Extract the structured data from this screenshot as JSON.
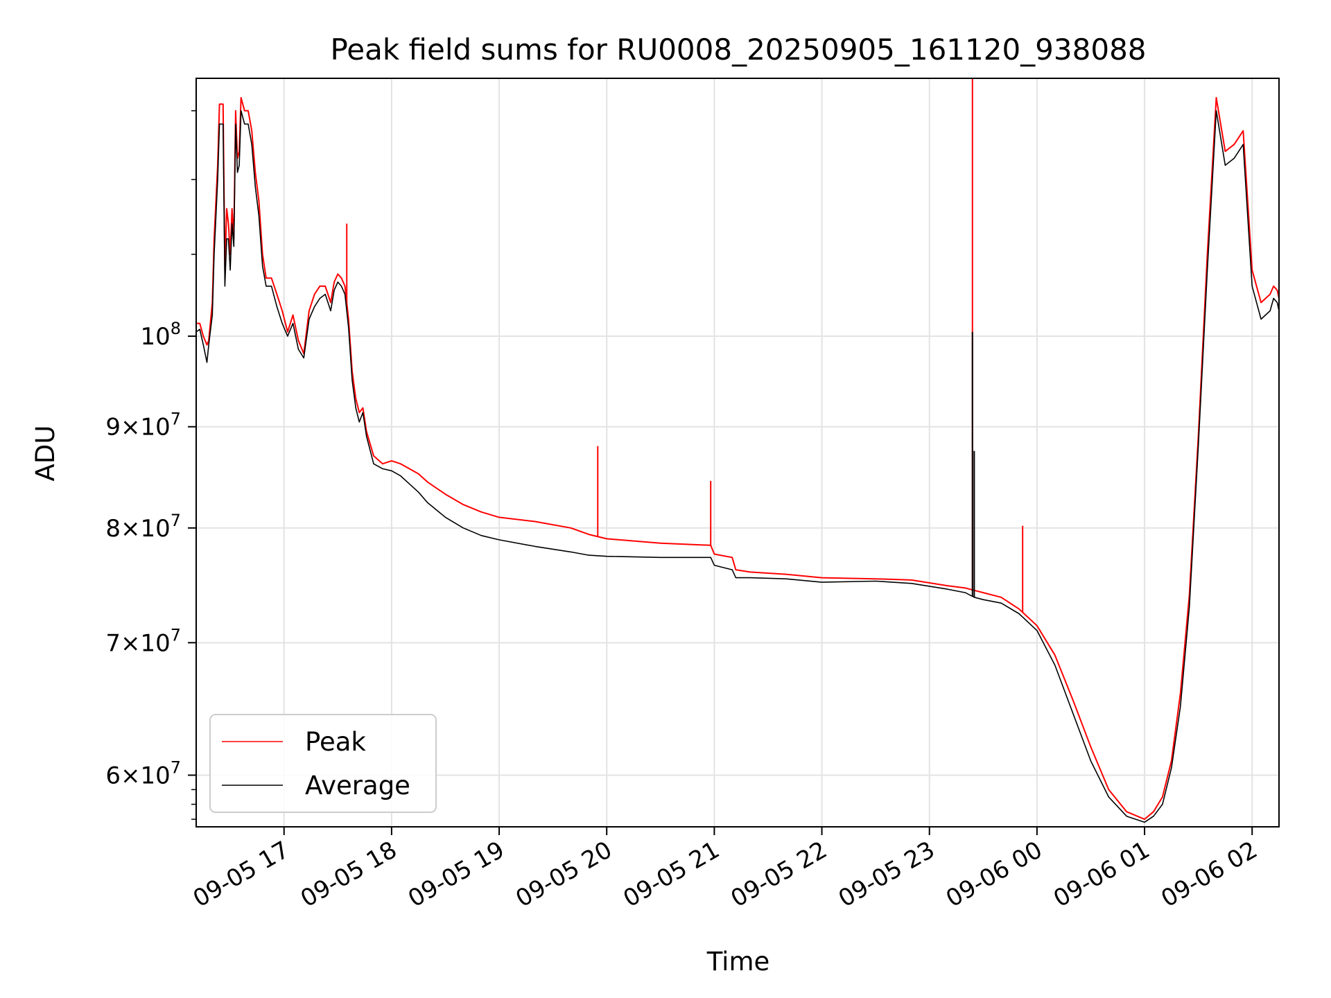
{
  "chart_data": {
    "type": "line",
    "title": "Peak field sums for RU0008_20250905_161120_938088",
    "xlabel": "Time",
    "ylabel": "ADU",
    "yscale": "log",
    "xlim": [
      "2025-09-05 16:11",
      "2025-09-06 02:15"
    ],
    "ylim": [
      56500000,
      135000000
    ],
    "grid": true,
    "legend_position": "lower left",
    "x_ticks": [
      "09-05 17",
      "09-05 18",
      "09-05 19",
      "09-05 20",
      "09-05 21",
      "09-05 22",
      "09-05 23",
      "09-06 00",
      "09-06 01",
      "09-06 02"
    ],
    "y_ticks": [
      {
        "value": 60000000,
        "mantissa": "6",
        "exponent": "7"
      },
      {
        "value": 70000000,
        "mantissa": "7",
        "exponent": "7"
      },
      {
        "value": 80000000,
        "mantissa": "8",
        "exponent": "7"
      },
      {
        "value": 90000000,
        "mantissa": "9",
        "exponent": "7"
      },
      {
        "value": 100000000,
        "mantissa": "",
        "exponent": "8"
      }
    ],
    "series": [
      {
        "name": "Peak",
        "color": "#ff0000",
        "x": [
          "2025-09-05 16:11",
          "2025-09-05 16:13",
          "2025-09-05 16:15",
          "2025-09-05 16:17",
          "2025-09-05 16:18",
          "2025-09-05 16:20",
          "2025-09-05 16:21",
          "2025-09-05 16:23",
          "2025-09-05 16:24",
          "2025-09-05 16:26",
          "2025-09-05 16:27",
          "2025-09-05 16:28",
          "2025-09-05 16:29",
          "2025-09-05 16:30",
          "2025-09-05 16:31",
          "2025-09-05 16:32",
          "2025-09-05 16:33",
          "2025-09-05 16:34",
          "2025-09-05 16:35",
          "2025-09-05 16:36",
          "2025-09-05 16:38",
          "2025-09-05 16:40",
          "2025-09-05 16:42",
          "2025-09-05 16:44",
          "2025-09-05 16:46",
          "2025-09-05 16:48",
          "2025-09-05 16:50",
          "2025-09-05 16:53",
          "2025-09-05 16:56",
          "2025-09-05 16:59",
          "2025-09-05 17:02",
          "2025-09-05 17:05",
          "2025-09-05 17:08",
          "2025-09-05 17:11",
          "2025-09-05 17:14",
          "2025-09-05 17:17",
          "2025-09-05 17:20",
          "2025-09-05 17:23",
          "2025-09-05 17:26",
          "2025-09-05 17:28",
          "2025-09-05 17:30",
          "2025-09-05 17:32",
          "2025-09-05 17:34",
          "2025-09-05 17:36",
          "2025-09-05 17:38",
          "2025-09-05 17:40",
          "2025-09-05 17:42",
          "2025-09-05 17:44",
          "2025-09-05 17:46",
          "2025-09-05 17:50",
          "2025-09-05 17:55",
          "2025-09-05 18:00",
          "2025-09-05 18:05",
          "2025-09-05 18:10",
          "2025-09-05 18:15",
          "2025-09-05 18:20",
          "2025-09-05 18:30",
          "2025-09-05 18:40",
          "2025-09-05 18:50",
          "2025-09-05 19:00",
          "2025-09-05 19:20",
          "2025-09-05 19:40",
          "2025-09-05 19:50",
          "2025-09-05 20:00",
          "2025-09-05 20:30",
          "2025-09-05 20:58",
          "2025-09-05 21:00",
          "2025-09-05 21:10",
          "2025-09-05 21:12",
          "2025-09-05 21:20",
          "2025-09-05 21:40",
          "2025-09-05 22:00",
          "2025-09-05 22:30",
          "2025-09-05 22:50",
          "2025-09-05 23:10",
          "2025-09-05 23:20",
          "2025-09-05 23:25",
          "2025-09-05 23:30",
          "2025-09-05 23:40",
          "2025-09-05 23:50",
          "2025-09-06 00:00",
          "2025-09-06 00:10",
          "2025-09-06 00:20",
          "2025-09-06 00:30",
          "2025-09-06 00:40",
          "2025-09-06 00:50",
          "2025-09-06 01:00",
          "2025-09-06 01:05",
          "2025-09-06 01:10",
          "2025-09-06 01:15",
          "2025-09-06 01:20",
          "2025-09-06 01:25",
          "2025-09-06 01:30",
          "2025-09-06 01:35",
          "2025-09-06 01:40",
          "2025-09-06 01:45",
          "2025-09-06 01:50",
          "2025-09-06 01:55",
          "2025-09-06 02:00",
          "2025-09-06 02:05",
          "2025-09-06 02:10",
          "2025-09-06 02:12",
          "2025-09-06 02:14",
          "2025-09-06 02:15"
        ],
        "y": [
          101500000,
          101500000,
          100000000,
          99000000,
          99500000,
          104000000,
          112000000,
          122000000,
          131000000,
          131000000,
          108000000,
          116000000,
          114000000,
          110000000,
          116000000,
          112000000,
          130000000,
          123000000,
          124000000,
          132000000,
          130000000,
          130000000,
          127000000,
          121000000,
          117000000,
          110000000,
          107000000,
          107000000,
          105000000,
          103000000,
          100500000,
          102500000,
          99500000,
          98000000,
          103000000,
          105000000,
          106000000,
          106000000,
          104000000,
          106500000,
          107500000,
          107000000,
          106000000,
          102000000,
          96000000,
          93000000,
          91500000,
          92000000,
          89500000,
          87000000,
          86200000,
          86500000,
          86200000,
          85700000,
          85200000,
          84400000,
          83200000,
          82200000,
          81500000,
          81000000,
          80600000,
          80000000,
          79400000,
          79000000,
          78600000,
          78400000,
          77600000,
          77300000,
          76200000,
          76000000,
          75800000,
          75500000,
          75400000,
          75300000,
          74800000,
          74600000,
          74400000,
          74200000,
          73800000,
          72800000,
          71400000,
          69000000,
          65500000,
          62000000,
          59000000,
          57500000,
          57000000,
          57500000,
          58500000,
          61000000,
          66000000,
          74000000,
          89000000,
          110000000,
          132000000,
          124000000,
          125000000,
          127000000,
          108000000,
          104000000,
          105000000,
          106000000,
          105500000,
          104500000
        ],
        "spikes": [
          {
            "x": "2025-09-05 17:35",
            "y": 114000000
          },
          {
            "x": "2025-09-05 19:55",
            "y": 88000000
          },
          {
            "x": "2025-09-05 20:58",
            "y": 84500000
          },
          {
            "x": "2025-09-05 23:24",
            "y": 135000000
          },
          {
            "x": "2025-09-05 23:52",
            "y": 80200000
          }
        ]
      },
      {
        "name": "Average",
        "color": "#000000",
        "x": [
          "2025-09-05 16:11",
          "2025-09-05 16:13",
          "2025-09-05 16:15",
          "2025-09-05 16:17",
          "2025-09-05 16:18",
          "2025-09-05 16:20",
          "2025-09-05 16:21",
          "2025-09-05 16:23",
          "2025-09-05 16:24",
          "2025-09-05 16:26",
          "2025-09-05 16:27",
          "2025-09-05 16:28",
          "2025-09-05 16:29",
          "2025-09-05 16:30",
          "2025-09-05 16:31",
          "2025-09-05 16:32",
          "2025-09-05 16:33",
          "2025-09-05 16:34",
          "2025-09-05 16:35",
          "2025-09-05 16:36",
          "2025-09-05 16:38",
          "2025-09-05 16:40",
          "2025-09-05 16:42",
          "2025-09-05 16:44",
          "2025-09-05 16:46",
          "2025-09-05 16:48",
          "2025-09-05 16:50",
          "2025-09-05 16:53",
          "2025-09-05 16:56",
          "2025-09-05 16:59",
          "2025-09-05 17:02",
          "2025-09-05 17:05",
          "2025-09-05 17:08",
          "2025-09-05 17:11",
          "2025-09-05 17:14",
          "2025-09-05 17:17",
          "2025-09-05 17:20",
          "2025-09-05 17:23",
          "2025-09-05 17:26",
          "2025-09-05 17:28",
          "2025-09-05 17:30",
          "2025-09-05 17:32",
          "2025-09-05 17:34",
          "2025-09-05 17:36",
          "2025-09-05 17:38",
          "2025-09-05 17:40",
          "2025-09-05 17:42",
          "2025-09-05 17:44",
          "2025-09-05 17:46",
          "2025-09-05 17:50",
          "2025-09-05 17:55",
          "2025-09-05 18:00",
          "2025-09-05 18:05",
          "2025-09-05 18:10",
          "2025-09-05 18:15",
          "2025-09-05 18:20",
          "2025-09-05 18:30",
          "2025-09-05 18:40",
          "2025-09-05 18:50",
          "2025-09-05 19:00",
          "2025-09-05 19:20",
          "2025-09-05 19:40",
          "2025-09-05 19:50",
          "2025-09-05 20:00",
          "2025-09-05 20:30",
          "2025-09-05 20:58",
          "2025-09-05 21:00",
          "2025-09-05 21:10",
          "2025-09-05 21:12",
          "2025-09-05 21:20",
          "2025-09-05 21:40",
          "2025-09-05 22:00",
          "2025-09-05 22:30",
          "2025-09-05 22:50",
          "2025-09-05 23:10",
          "2025-09-05 23:20",
          "2025-09-05 23:25",
          "2025-09-05 23:30",
          "2025-09-05 23:40",
          "2025-09-05 23:50",
          "2025-09-06 00:00",
          "2025-09-06 00:10",
          "2025-09-06 00:20",
          "2025-09-06 00:30",
          "2025-09-06 00:40",
          "2025-09-06 00:50",
          "2025-09-06 01:00",
          "2025-09-06 01:05",
          "2025-09-06 01:10",
          "2025-09-06 01:15",
          "2025-09-06 01:20",
          "2025-09-06 01:25",
          "2025-09-06 01:30",
          "2025-09-06 01:35",
          "2025-09-06 01:40",
          "2025-09-06 01:45",
          "2025-09-06 01:50",
          "2025-09-06 01:55",
          "2025-09-06 02:00",
          "2025-09-06 02:05",
          "2025-09-06 02:10",
          "2025-09-06 02:12",
          "2025-09-06 02:14",
          "2025-09-06 02:15"
        ],
        "y": [
          100500000,
          100800000,
          99000000,
          97000000,
          99000000,
          102500000,
          110000000,
          120000000,
          128000000,
          128000000,
          106000000,
          112000000,
          112000000,
          108000000,
          114000000,
          111000000,
          128000000,
          121000000,
          122000000,
          130000000,
          128000000,
          128000000,
          125000000,
          119000000,
          115000000,
          108500000,
          106000000,
          106000000,
          103500000,
          101500000,
          100000000,
          101500000,
          98500000,
          97500000,
          102000000,
          103500000,
          104500000,
          105000000,
          103000000,
          105500000,
          106500000,
          106000000,
          105000000,
          101000000,
          95000000,
          92000000,
          90500000,
          91500000,
          89000000,
          86200000,
          85700000,
          85500000,
          85000000,
          84200000,
          83400000,
          82400000,
          81000000,
          80000000,
          79300000,
          78900000,
          78300000,
          77800000,
          77500000,
          77400000,
          77300000,
          77300000,
          76600000,
          76200000,
          75500000,
          75500000,
          75400000,
          75100000,
          75200000,
          75000000,
          74500000,
          74200000,
          73800000,
          73600000,
          73300000,
          72400000,
          71000000,
          68200000,
          64500000,
          61000000,
          58500000,
          57200000,
          56800000,
          57200000,
          58000000,
          60500000,
          65000000,
          73000000,
          88000000,
          108000000,
          130000000,
          122000000,
          123000000,
          125000000,
          106000000,
          102000000,
          103000000,
          104500000,
          104000000,
          103000000
        ],
        "spikes": [
          {
            "x": "2025-09-05 23:24",
            "y": 100500000
          },
          {
            "x": "2025-09-05 23:25",
            "y": 87500000
          }
        ]
      }
    ]
  }
}
